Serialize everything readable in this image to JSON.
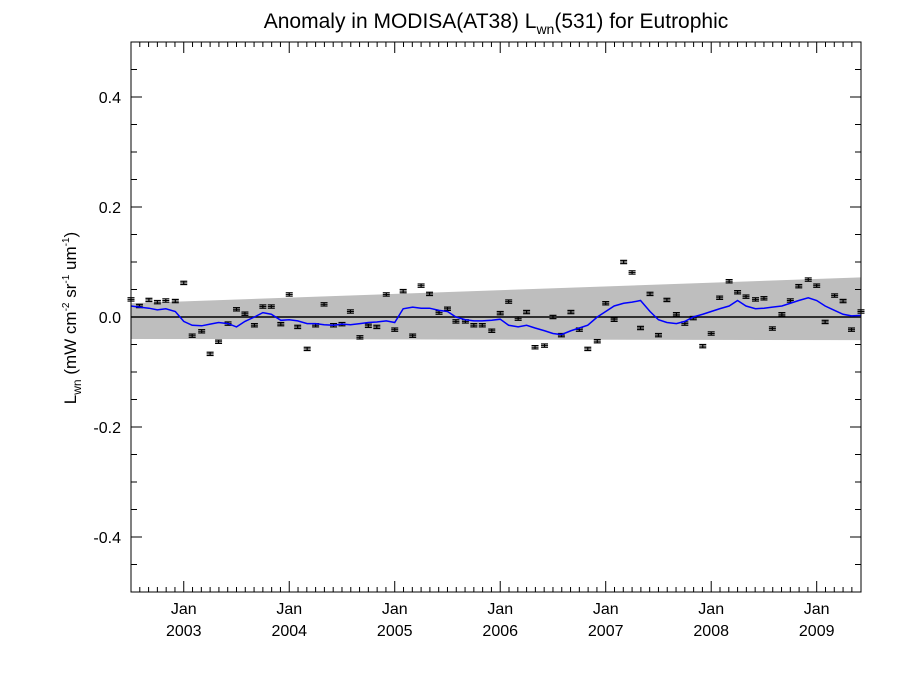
{
  "chart_data": {
    "type": "line",
    "title": {
      "prefix": "Anomaly in MODISA(AT38) L",
      "subscript": "wn",
      "suffix": "(531) for Eutrophic"
    },
    "ylabel": {
      "main": "L",
      "main_sub": "wn",
      "open": " (mW cm",
      "sup1": "-2",
      "mid": " sr",
      "sup2": "-1",
      "mid2": " um",
      "sup3": "-1",
      "close": ")"
    },
    "xlim": [
      2002.5,
      2009.42
    ],
    "ylim": [
      -0.5,
      0.5
    ],
    "y_ticks": [
      {
        "value": -0.4,
        "label": "-0.4"
      },
      {
        "value": -0.2,
        "label": "-0.2"
      },
      {
        "value": 0.0,
        "label": "0.0"
      },
      {
        "value": 0.2,
        "label": "0.2"
      },
      {
        "value": 0.4,
        "label": "0.4"
      }
    ],
    "y_minor_step": 0.05,
    "x_ticks": [
      {
        "value": 2003.0,
        "label": "Jan",
        "year": "2003"
      },
      {
        "value": 2004.0,
        "label": "Jan",
        "year": "2004"
      },
      {
        "value": 2005.0,
        "label": "Jan",
        "year": "2005"
      },
      {
        "value": 2006.0,
        "label": "Jan",
        "year": "2006"
      },
      {
        "value": 2007.0,
        "label": "Jan",
        "year": "2007"
      },
      {
        "value": 2008.0,
        "label": "Jan",
        "year": "2008"
      },
      {
        "value": 2009.0,
        "label": "Jan",
        "year": "2009"
      }
    ],
    "x_minor_step_months": 1,
    "zero_line": 0.0,
    "band": {
      "color": "#bebebe",
      "lower": [
        [
          2002.5,
          -0.04
        ],
        [
          2009.42,
          -0.042
        ]
      ],
      "upper": [
        [
          2002.5,
          0.025
        ],
        [
          2009.42,
          0.072
        ]
      ]
    },
    "errorbar_points": {
      "color": "#000000",
      "err": 0.003,
      "x": [
        2002.5,
        2002.58,
        2002.67,
        2002.75,
        2002.83,
        2002.92,
        2003.0,
        2003.08,
        2003.17,
        2003.25,
        2003.33,
        2003.42,
        2003.5,
        2003.58,
        2003.67,
        2003.75,
        2003.83,
        2003.92,
        2004.0,
        2004.08,
        2004.17,
        2004.25,
        2004.33,
        2004.42,
        2004.5,
        2004.58,
        2004.67,
        2004.75,
        2004.83,
        2004.92,
        2005.0,
        2005.08,
        2005.17,
        2005.25,
        2005.33,
        2005.42,
        2005.5,
        2005.58,
        2005.67,
        2005.75,
        2005.83,
        2005.92,
        2006.0,
        2006.08,
        2006.17,
        2006.25,
        2006.33,
        2006.42,
        2006.5,
        2006.58,
        2006.67,
        2006.75,
        2006.83,
        2006.92,
        2007.0,
        2007.08,
        2007.17,
        2007.25,
        2007.33,
        2007.42,
        2007.5,
        2007.58,
        2007.67,
        2007.75,
        2007.83,
        2007.92,
        2008.0,
        2008.08,
        2008.17,
        2008.25,
        2008.33,
        2008.42,
        2008.5,
        2008.58,
        2008.67,
        2008.75,
        2008.83,
        2008.92,
        2009.0,
        2009.08,
        2009.17,
        2009.25,
        2009.33,
        2009.42
      ],
      "y": [
        0.032,
        0.02,
        0.031,
        0.027,
        0.03,
        0.029,
        0.062,
        -0.034,
        -0.026,
        -0.067,
        -0.045,
        -0.012,
        0.014,
        0.006,
        -0.015,
        0.019,
        0.019,
        -0.013,
        0.041,
        -0.018,
        -0.058,
        -0.015,
        0.023,
        -0.015,
        -0.013,
        0.01,
        -0.037,
        -0.016,
        -0.018,
        0.041,
        -0.023,
        0.047,
        -0.034,
        0.057,
        0.042,
        0.008,
        0.015,
        -0.008,
        -0.008,
        -0.015,
        -0.015,
        -0.025,
        0.007,
        0.028,
        -0.003,
        0.009,
        -0.055,
        -0.052,
        0.0,
        -0.033,
        0.009,
        -0.023,
        -0.058,
        -0.044,
        0.025,
        -0.005,
        0.1,
        0.081,
        -0.02,
        0.042,
        -0.033,
        0.031,
        0.005,
        -0.012,
        -0.002,
        -0.053,
        -0.03,
        0.035,
        0.065,
        0.045,
        0.037,
        0.032,
        0.034,
        -0.021,
        0.005,
        0.03,
        0.056,
        0.068,
        0.057,
        -0.009,
        0.039,
        0.029,
        -0.023,
        0.01
      ]
    },
    "smooth_line": {
      "color": "#0000ff",
      "x": [
        2002.5,
        2002.58,
        2002.67,
        2002.75,
        2002.83,
        2002.92,
        2003.0,
        2003.08,
        2003.17,
        2003.25,
        2003.33,
        2003.42,
        2003.5,
        2003.58,
        2003.67,
        2003.75,
        2003.83,
        2003.92,
        2004.0,
        2004.08,
        2004.17,
        2004.25,
        2004.33,
        2004.42,
        2004.5,
        2004.58,
        2004.67,
        2004.75,
        2004.83,
        2004.92,
        2005.0,
        2005.08,
        2005.17,
        2005.25,
        2005.33,
        2005.42,
        2005.5,
        2005.58,
        2005.67,
        2005.75,
        2005.83,
        2005.92,
        2006.0,
        2006.08,
        2006.17,
        2006.25,
        2006.33,
        2006.42,
        2006.5,
        2006.58,
        2006.67,
        2006.75,
        2006.83,
        2006.92,
        2007.0,
        2007.08,
        2007.17,
        2007.25,
        2007.33,
        2007.42,
        2007.5,
        2007.58,
        2007.67,
        2007.75,
        2007.83,
        2007.92,
        2008.0,
        2008.08,
        2008.17,
        2008.25,
        2008.33,
        2008.42,
        2008.5,
        2008.58,
        2008.67,
        2008.75,
        2008.83,
        2008.92,
        2009.0,
        2009.08,
        2009.17,
        2009.25,
        2009.33,
        2009.42
      ],
      "y": [
        0.02,
        0.018,
        0.016,
        0.013,
        0.015,
        0.01,
        -0.008,
        -0.015,
        -0.016,
        -0.013,
        -0.01,
        -0.012,
        -0.018,
        -0.008,
        0.0,
        0.008,
        0.005,
        -0.006,
        -0.005,
        -0.007,
        -0.012,
        -0.012,
        -0.014,
        -0.015,
        -0.013,
        -0.014,
        -0.012,
        -0.01,
        -0.009,
        -0.007,
        -0.01,
        0.015,
        0.018,
        0.016,
        0.016,
        0.012,
        0.01,
        0.0,
        -0.005,
        -0.007,
        -0.007,
        -0.006,
        -0.004,
        -0.015,
        -0.018,
        -0.015,
        -0.02,
        -0.025,
        -0.03,
        -0.032,
        -0.025,
        -0.02,
        -0.015,
        0.0,
        0.01,
        0.02,
        0.025,
        0.027,
        0.03,
        0.01,
        -0.005,
        -0.01,
        -0.012,
        -0.008,
        0.0,
        0.005,
        0.01,
        0.015,
        0.02,
        0.03,
        0.02,
        0.015,
        0.016,
        0.018,
        0.02,
        0.025,
        0.03,
        0.035,
        0.03,
        0.02,
        0.012,
        0.005,
        0.002,
        0.003
      ]
    }
  }
}
